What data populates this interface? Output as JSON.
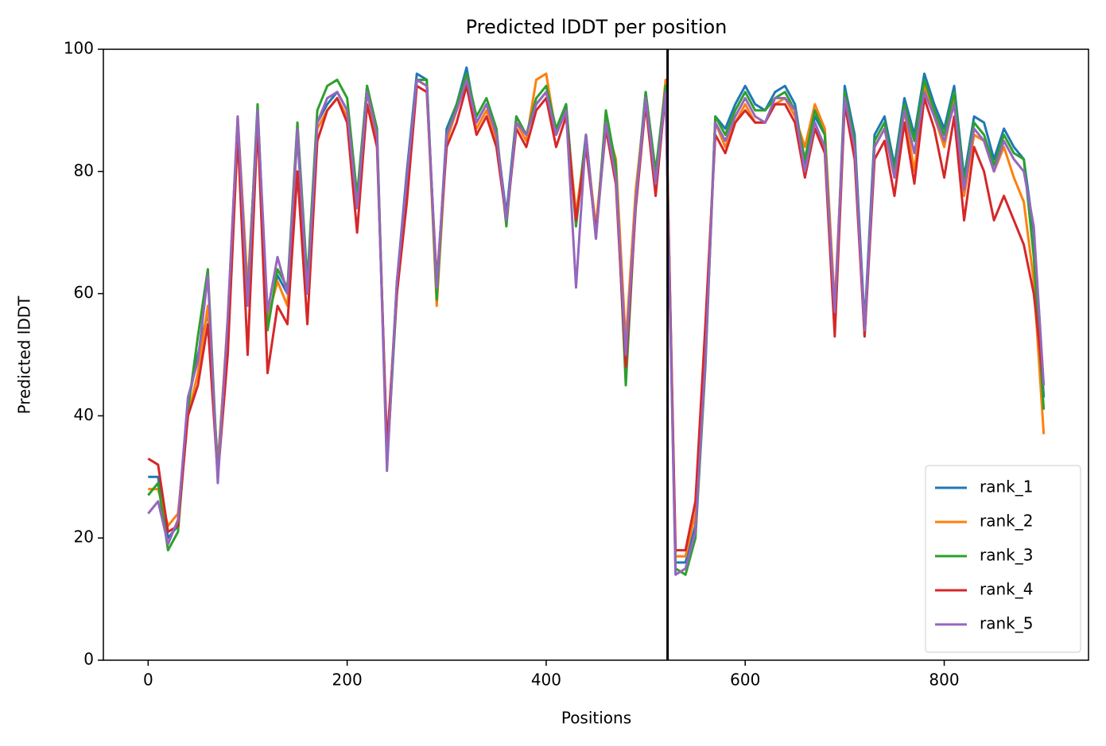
{
  "chart_data": {
    "type": "line",
    "title": "Predicted lDDT per position",
    "x_label": "Positions",
    "y_label": "Predicted lDDT",
    "x": [
      0,
      10,
      20,
      30,
      40,
      50,
      60,
      70,
      80,
      90,
      100,
      110,
      120,
      130,
      140,
      150,
      160,
      170,
      180,
      190,
      200,
      210,
      220,
      230,
      240,
      250,
      260,
      270,
      280,
      290,
      300,
      310,
      320,
      330,
      340,
      350,
      360,
      370,
      380,
      390,
      400,
      410,
      420,
      430,
      440,
      450,
      460,
      470,
      480,
      490,
      500,
      510,
      520,
      530,
      540,
      550,
      560,
      570,
      580,
      590,
      600,
      610,
      620,
      630,
      640,
      650,
      660,
      670,
      680,
      690,
      700,
      710,
      720,
      730,
      740,
      750,
      760,
      770,
      780,
      790,
      800,
      810,
      820,
      830,
      840,
      850,
      860,
      870,
      880,
      890,
      900
    ],
    "series": [
      {
        "name": "rank_1",
        "color": "#1f77b4",
        "values": [
          30,
          30,
          20,
          22,
          42,
          50,
          57,
          32,
          55,
          88,
          60,
          90,
          55,
          63,
          60,
          86,
          60,
          88,
          91,
          93,
          90,
          75,
          94,
          86,
          33,
          62,
          80,
          96,
          95,
          60,
          87,
          91,
          97,
          88,
          91,
          86,
          73,
          89,
          86,
          91,
          93,
          86,
          91,
          72,
          86,
          70,
          89,
          80,
          50,
          76,
          93,
          79,
          94,
          16,
          16,
          22,
          50,
          89,
          87,
          91,
          94,
          91,
          90,
          93,
          94,
          91,
          81,
          89,
          86,
          56,
          94,
          86,
          55,
          86,
          89,
          81,
          92,
          86,
          96,
          91,
          87,
          94,
          79,
          89,
          88,
          82,
          87,
          84,
          82,
          70,
          43
        ]
      },
      {
        "name": "rank_2",
        "color": "#ff7f0e",
        "values": [
          28,
          28,
          22,
          24,
          40,
          47,
          58,
          31,
          56,
          89,
          61,
          89,
          56,
          62,
          58,
          87,
          61,
          87,
          90,
          92,
          89,
          74,
          93,
          85,
          34,
          61,
          78,
          95,
          94,
          58,
          85,
          90,
          95,
          87,
          90,
          85,
          72,
          88,
          85,
          95,
          96,
          86,
          90,
          73,
          85,
          71,
          88,
          82,
          52,
          77,
          92,
          78,
          95,
          17,
          17,
          24,
          52,
          88,
          84,
          88,
          91,
          88,
          88,
          91,
          92,
          89,
          84,
          91,
          87,
          58,
          92,
          84,
          54,
          84,
          87,
          79,
          90,
          80,
          94,
          89,
          84,
          92,
          76,
          86,
          85,
          80,
          84,
          79,
          75,
          62,
          37
        ]
      },
      {
        "name": "rank_3",
        "color": "#2ca02c",
        "values": [
          27,
          29,
          18,
          21,
          41,
          53,
          64,
          30,
          54,
          87,
          59,
          91,
          54,
          64,
          61,
          88,
          62,
          90,
          94,
          95,
          92,
          76,
          94,
          87,
          32,
          60,
          79,
          95,
          95,
          59,
          86,
          91,
          96,
          89,
          92,
          87,
          71,
          89,
          86,
          92,
          94,
          87,
          91,
          71,
          86,
          69,
          90,
          81,
          45,
          75,
          93,
          80,
          94,
          15,
          14,
          20,
          48,
          89,
          86,
          90,
          93,
          90,
          90,
          92,
          93,
          90,
          82,
          90,
          86,
          55,
          93,
          85,
          53,
          85,
          88,
          80,
          91,
          85,
          95,
          90,
          86,
          93,
          78,
          88,
          86,
          81,
          86,
          83,
          82,
          66,
          41
        ]
      },
      {
        "name": "rank_4",
        "color": "#d62728",
        "values": [
          33,
          32,
          21,
          22,
          40,
          45,
          55,
          30,
          50,
          86,
          50,
          88,
          47,
          58,
          55,
          80,
          55,
          85,
          90,
          92,
          88,
          70,
          91,
          84,
          35,
          60,
          75,
          94,
          93,
          62,
          84,
          88,
          94,
          86,
          89,
          84,
          72,
          87,
          84,
          90,
          92,
          84,
          89,
          72,
          84,
          70,
          87,
          78,
          48,
          74,
          91,
          76,
          93,
          18,
          18,
          26,
          55,
          86,
          83,
          88,
          90,
          88,
          88,
          91,
          91,
          88,
          79,
          87,
          83,
          53,
          91,
          82,
          53,
          82,
          85,
          76,
          88,
          78,
          92,
          87,
          79,
          89,
          72,
          84,
          80,
          72,
          76,
          72,
          68,
          60,
          45
        ]
      },
      {
        "name": "rank_5",
        "color": "#9467bd",
        "values": [
          24,
          26,
          19,
          23,
          43,
          49,
          63,
          29,
          56,
          89,
          58,
          90,
          57,
          66,
          60,
          87,
          60,
          88,
          92,
          93,
          90,
          74,
          93,
          86,
          31,
          62,
          79,
          95,
          94,
          61,
          86,
          90,
          95,
          88,
          91,
          86,
          72,
          88,
          86,
          91,
          93,
          86,
          90,
          61,
          86,
          69,
          88,
          79,
          50,
          75,
          92,
          78,
          93,
          14,
          15,
          21,
          49,
          88,
          85,
          89,
          92,
          89,
          88,
          92,
          92,
          90,
          80,
          88,
          84,
          57,
          92,
          84,
          54,
          84,
          87,
          79,
          90,
          83,
          93,
          89,
          85,
          91,
          77,
          87,
          85,
          80,
          85,
          82,
          80,
          71,
          45
        ]
      }
    ],
    "vlines": [
      522
    ],
    "xlim": [
      -45,
      945
    ],
    "ylim": [
      0,
      100
    ],
    "xticks": [
      0,
      200,
      400,
      600,
      800
    ],
    "yticks": [
      0,
      20,
      40,
      60,
      80,
      100
    ],
    "legend": "lower right"
  }
}
